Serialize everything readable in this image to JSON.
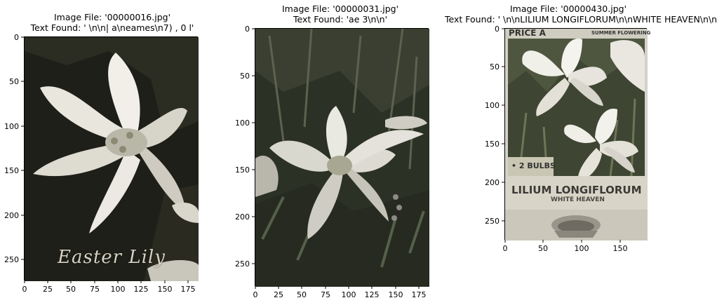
{
  "panels": [
    {
      "title_line1": "Image File: '00000016.jpg'",
      "title_line2": "Text Found: ' \\n\\n| a\\neames\\n7) , 0 l'",
      "image_text": "Easter Lily",
      "x_ticks": [
        "0",
        "25",
        "50",
        "75",
        "100",
        "125",
        "150",
        "175"
      ],
      "y_ticks": [
        "0",
        "50",
        "100",
        "150",
        "200",
        "250"
      ],
      "icon": "white-lily-photo"
    },
    {
      "title_line1": "Image File: '00000031.jpg'",
      "title_line2": "Text Found: 'ae 3\\n\\n'",
      "x_ticks": [
        "0",
        "25",
        "50",
        "75",
        "100",
        "125",
        "150",
        "175"
      ],
      "y_ticks": [
        "0",
        "50",
        "100",
        "150",
        "200",
        "250"
      ],
      "icon": "lily-garden-photo"
    },
    {
      "title_line1": "Image File: '00000430.jpg'",
      "title_line2": "Text Found: ' \\n\\nLILIUM LONGIFLORUM\\n\\nWHITE HEAVEN\\n\\n'",
      "pkt_price": "PRICE A",
      "pkt_season": "SUMMER FLOWERING",
      "pkt_bulbs": "• 2 BULBS",
      "pkt_name": "LILIUM LONGIFLORUM",
      "pkt_variety": "WHITE HEAVEN",
      "x_ticks": [
        "0",
        "50",
        "100",
        "150"
      ],
      "y_ticks": [
        "0",
        "50",
        "100",
        "150",
        "200",
        "250"
      ],
      "icon": "bulb-packet-photo"
    }
  ]
}
